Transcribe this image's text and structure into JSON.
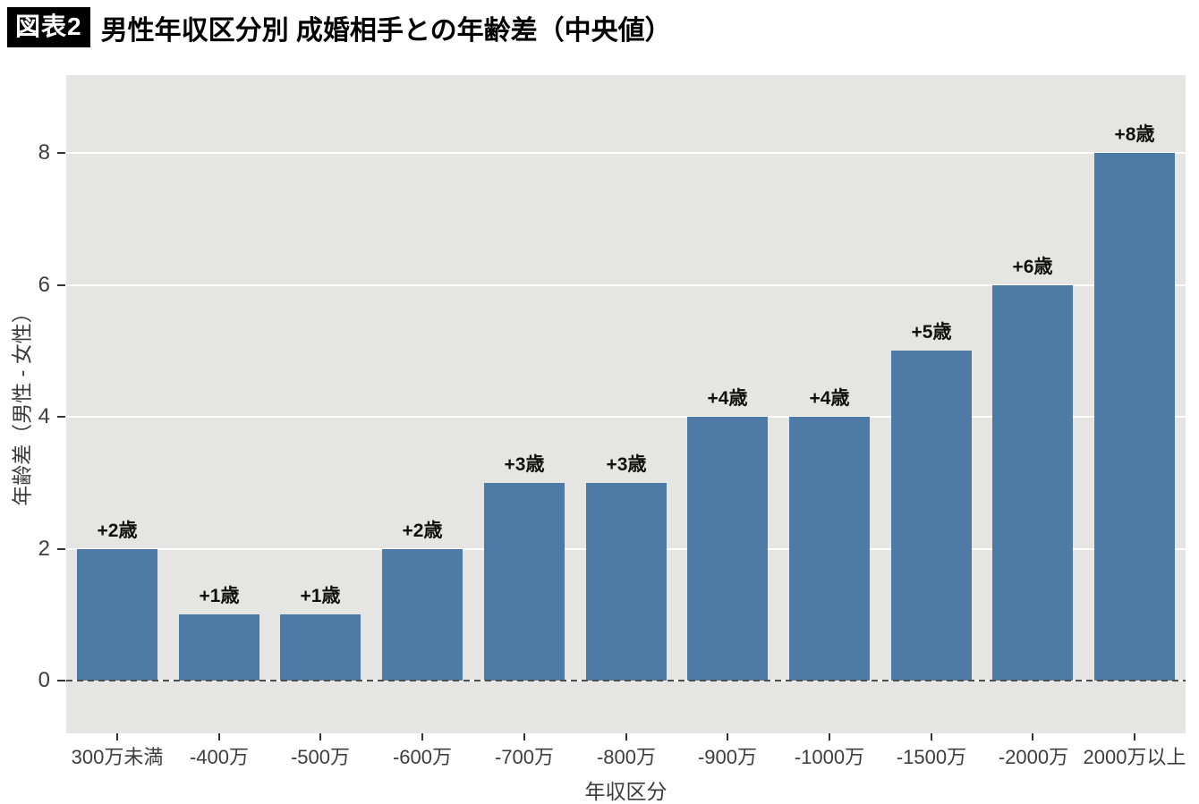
{
  "title": {
    "badge": "図表2",
    "text": "男性年収区分別 成婚相手との年齢差（中央値）"
  },
  "chart_data": {
    "type": "bar",
    "categories": [
      "300万未満",
      "-400万",
      "-500万",
      "-600万",
      "-700万",
      "-800万",
      "-900万",
      "-1000万",
      "-1500万",
      "-2000万",
      "2000万以上"
    ],
    "values": [
      2,
      1,
      1,
      2,
      3,
      3,
      4,
      4,
      5,
      6,
      8
    ],
    "bar_labels": [
      "+2歳",
      "+1歳",
      "+1歳",
      "+2歳",
      "+3歳",
      "+3歳",
      "+4歳",
      "+4歳",
      "+5歳",
      "+6歳",
      "+8歳"
    ],
    "xlabel": "年収区分",
    "ylabel": "年齢差（男性 - 女性）",
    "yticks": [
      0,
      2,
      4,
      6,
      8
    ],
    "ylim": [
      -0.8,
      9.18
    ],
    "legend": "none",
    "grid": "major-horizontal-white",
    "zero_line": "dashed",
    "colors": {
      "bar": "#4e7aa6",
      "plot_background": "#e5e5e3",
      "gridline": "#ffffff",
      "zero_line": "#4d4d4d",
      "axis_text": "#3d3d3d",
      "badge_background": "#000000",
      "badge_text": "#ffffff"
    }
  }
}
